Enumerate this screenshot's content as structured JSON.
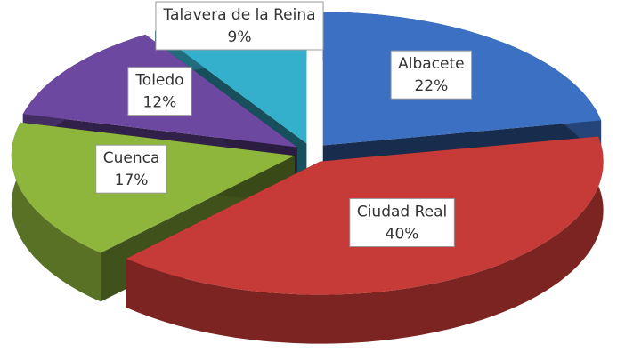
{
  "chart_data": {
    "type": "pie",
    "categories": [
      "Albacete",
      "Ciudad Real",
      "Cuenca",
      "Toledo",
      "Talavera de la Reina"
    ],
    "values": [
      22,
      40,
      17,
      12,
      9
    ],
    "value_labels": [
      "22%",
      "40%",
      "17%",
      "12%",
      "9%"
    ],
    "colors": [
      "#3b70c2",
      "#c63a37",
      "#8fb63c",
      "#6c48a0",
      "#34b0cc"
    ]
  }
}
